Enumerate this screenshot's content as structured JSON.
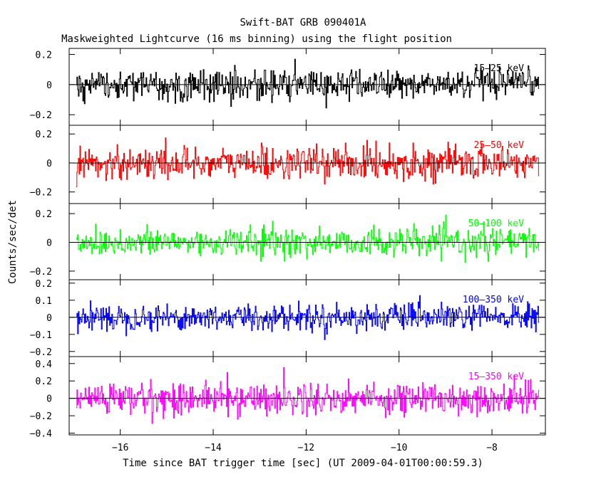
{
  "header": {
    "title": "Swift-BAT GRB 090401A",
    "subtitle": "Maskweighted Lightcurve (16 ms binning) using the flight position"
  },
  "chart_data": {
    "type": "line",
    "title": "Swift-BAT GRB 090401A",
    "subtitle": "Maskweighted Lightcurve (16 ms binning) using the flight position",
    "xlabel": "Time since BAT trigger time [sec] (UT 2009-04-01T00:00:59.3)",
    "ylabel": "Counts/sec/det",
    "xlim": [
      -17.1,
      -6.85
    ],
    "x_ticks": [
      -16,
      -14,
      -12,
      -10,
      -8
    ],
    "x_tick_labels": [
      "−16",
      "−14",
      "−12",
      "−10",
      "−8"
    ],
    "data_x_range": [
      -16.95,
      -7.0
    ],
    "bin_seconds": 0.016,
    "grid": false,
    "panels": [
      {
        "band": "15–25 keV",
        "color": "#000000",
        "ylim": [
          -0.27,
          0.24
        ],
        "y_ticks": [
          0.2,
          0,
          -0.2
        ],
        "y_tick_labels": [
          "0.2",
          "0",
          "−0.2"
        ],
        "noise_amplitude": 0.09
      },
      {
        "band": "25–50 keV",
        "color": "#ff0000",
        "ylim": [
          -0.28,
          0.26
        ],
        "y_ticks": [
          0.2,
          0,
          -0.2
        ],
        "y_tick_labels": [
          "0.2",
          "0",
          "−0.2"
        ],
        "noise_amplitude": 0.1
      },
      {
        "band": "50–100 keV",
        "color": "#00ff00",
        "ylim": [
          -0.26,
          0.27
        ],
        "y_ticks": [
          0.2,
          0,
          -0.2
        ],
        "y_tick_labels": [
          "0.2",
          "0",
          "−0.2"
        ],
        "noise_amplitude": 0.09
      },
      {
        "band": "100–350 keV",
        "color": "#0000ff",
        "ylim": [
          -0.23,
          0.22
        ],
        "y_ticks": [
          0.2,
          0.1,
          0,
          -0.1,
          -0.2
        ],
        "y_tick_labels": [
          "0.2",
          "0.1",
          "0",
          "−0.1",
          "−0.2"
        ],
        "noise_amplitude": 0.07
      },
      {
        "band": "15–350 keV",
        "color": "#ff00ff",
        "ylim": [
          -0.42,
          0.48
        ],
        "y_ticks": [
          0.4,
          0.2,
          0,
          -0.2,
          -0.4
        ],
        "y_tick_labels": [
          "0.4",
          "0.2",
          "0",
          "−0.2",
          "−0.4"
        ],
        "noise_amplitude": 0.17
      }
    ]
  }
}
